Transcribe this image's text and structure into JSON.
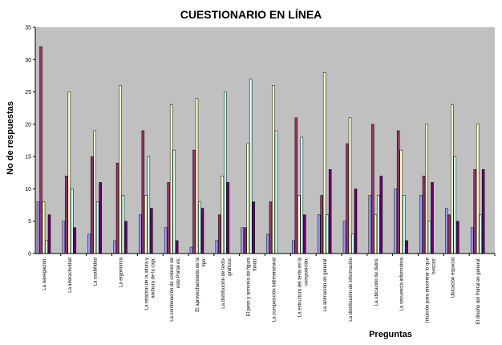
{
  "chart_data": {
    "type": "bar",
    "title": "CUESTIONARIO EN LÍNEA",
    "xlabel": "Preguntas",
    "ylabel": "No de respuestas",
    "ylim": [
      0,
      35
    ],
    "yticks": [
      0,
      5,
      10,
      15,
      20,
      25,
      30,
      35
    ],
    "grid": false,
    "legend": "none",
    "categories": [
      [
        "La navegación:"
      ],
      [
        "La interactividad"
      ],
      [
        "La usabilidad"
      ],
      [
        "La ergonomía"
      ],
      [
        "La relación de la altura y",
        "anchura de la caja:"
      ],
      [
        "La combinación de colores de",
        "este Portal es:"
      ],
      [
        "El aprovechamiento de la",
        "tipo:"
      ],
      [
        "La distribución de texto-",
        "gráficos:"
      ],
      [
        "El peso y armonía de figura",
        "fondo:"
      ],
      [
        "La composición bidimensional"
      ],
      [
        "La estructura del texto en la",
        "composición:"
      ],
      [
        "La animación en general:"
      ],
      [
        "La distribución de información"
      ],
      [
        "La ubicación de datos:"
      ],
      [
        "La secuencia informativa"
      ],
      [
        "Intuición para encontrar lo que",
        "buscas:"
      ],
      [
        "Ubicación espacial"
      ],
      [
        "El diseño del Portal en general:"
      ]
    ],
    "series": [
      {
        "color": "#9999ff",
        "values": [
          8,
          5,
          3,
          2,
          6,
          4,
          1,
          2,
          4,
          3,
          2,
          6,
          5,
          9,
          10,
          9,
          7,
          4
        ]
      },
      {
        "color": "#993366",
        "values": [
          32,
          12,
          15,
          14,
          19,
          11,
          16,
          6,
          4,
          8,
          21,
          9,
          17,
          20,
          19,
          12,
          6,
          13
        ]
      },
      {
        "color": "#ffffcc",
        "values": [
          8,
          25,
          19,
          26,
          9,
          23,
          24,
          12,
          17,
          26,
          9,
          28,
          21,
          6,
          16,
          20,
          23,
          20
        ]
      },
      {
        "color": "#ccffff",
        "values": [
          2,
          10,
          8,
          9,
          15,
          16,
          8,
          25,
          27,
          19,
          18,
          6,
          3,
          9,
          9,
          5,
          15,
          6
        ]
      },
      {
        "color": "#660066",
        "values": [
          6,
          4,
          11,
          5,
          7,
          2,
          7,
          11,
          8,
          0,
          6,
          13,
          10,
          12,
          2,
          11,
          5,
          13
        ]
      }
    ]
  }
}
